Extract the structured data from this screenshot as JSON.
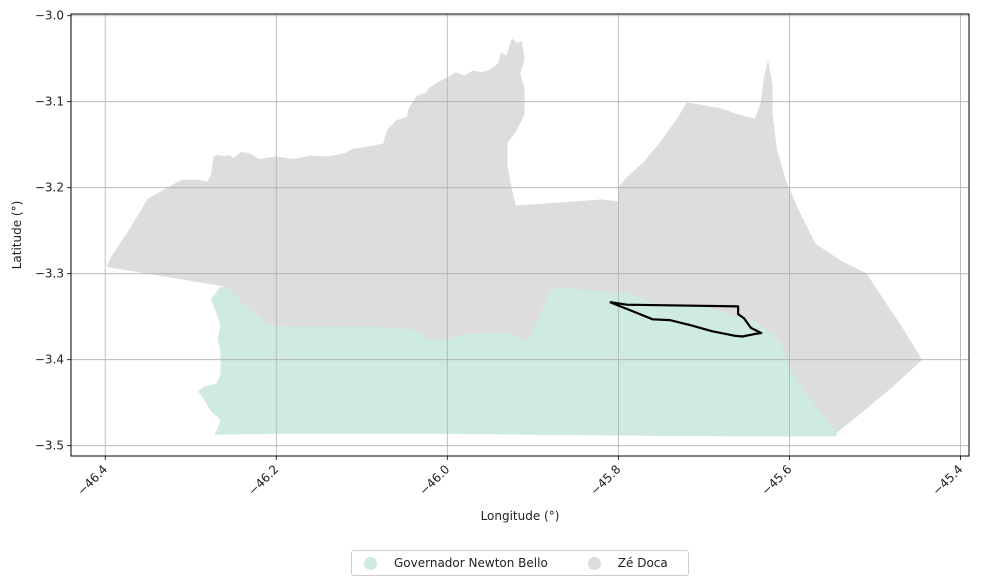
{
  "chart_data": {
    "type": "map",
    "xlabel": "Longitude (°)",
    "ylabel": "Latitude (°)",
    "xlim": [
      -46.44,
      -45.39
    ],
    "ylim": [
      -3.512,
      -2.998
    ],
    "xticks": [
      -46.4,
      -46.2,
      -46.0,
      -45.8,
      -45.6,
      -45.4
    ],
    "xtick_labels": [
      "−46.4",
      "−46.2",
      "−46.0",
      "−45.8",
      "−45.6",
      "−45.4"
    ],
    "yticks": [
      -3.0,
      -3.1,
      -3.2,
      -3.3,
      -3.4,
      -3.5
    ],
    "ytick_labels": [
      "−3.0",
      "−3.1",
      "−3.2",
      "−3.3",
      "−3.4",
      "−3.5"
    ],
    "grid": true,
    "legend_position": "bottom-center",
    "regions": [
      {
        "name": "Zé Doca",
        "color": "#dddddd",
        "coords": [
          [
            -46.398,
            -3.292
          ],
          [
            -46.392,
            -3.279
          ],
          [
            -46.37,
            -3.246
          ],
          [
            -46.35,
            -3.213
          ],
          [
            -46.32,
            -3.196
          ],
          [
            -46.31,
            -3.191
          ],
          [
            -46.29,
            -3.191
          ],
          [
            -46.28,
            -3.193
          ],
          [
            -46.276,
            -3.185
          ],
          [
            -46.273,
            -3.164
          ],
          [
            -46.27,
            -3.162
          ],
          [
            -46.26,
            -3.164
          ],
          [
            -46.255,
            -3.162
          ],
          [
            -46.25,
            -3.166
          ],
          [
            -46.242,
            -3.159
          ],
          [
            -46.232,
            -3.16
          ],
          [
            -46.22,
            -3.167
          ],
          [
            -46.2,
            -3.164
          ],
          [
            -46.18,
            -3.167
          ],
          [
            -46.16,
            -3.163
          ],
          [
            -46.14,
            -3.164
          ],
          [
            -46.12,
            -3.16
          ],
          [
            -46.11,
            -3.155
          ],
          [
            -46.09,
            -3.152
          ],
          [
            -46.075,
            -3.149
          ],
          [
            -46.07,
            -3.133
          ],
          [
            -46.06,
            -3.122
          ],
          [
            -46.047,
            -3.118
          ],
          [
            -46.045,
            -3.108
          ],
          [
            -46.04,
            -3.1
          ],
          [
            -46.035,
            -3.093
          ],
          [
            -46.025,
            -3.09
          ],
          [
            -46.02,
            -3.083
          ],
          [
            -46.01,
            -3.077
          ],
          [
            -46.0,
            -3.072
          ],
          [
            -45.99,
            -3.066
          ],
          [
            -45.98,
            -3.07
          ],
          [
            -45.97,
            -3.064
          ],
          [
            -45.96,
            -3.066
          ],
          [
            -45.95,
            -3.063
          ],
          [
            -45.94,
            -3.055
          ],
          [
            -45.937,
            -3.043
          ],
          [
            -45.931,
            -3.047
          ],
          [
            -45.924,
            -3.027
          ],
          [
            -45.918,
            -3.032
          ],
          [
            -45.913,
            -3.03
          ],
          [
            -45.91,
            -3.05
          ],
          [
            -45.915,
            -3.067
          ],
          [
            -45.91,
            -3.085
          ],
          [
            -45.91,
            -3.115
          ],
          [
            -45.92,
            -3.135
          ],
          [
            -45.93,
            -3.148
          ],
          [
            -45.93,
            -3.175
          ],
          [
            -45.925,
            -3.2
          ],
          [
            -45.92,
            -3.221
          ],
          [
            -45.86,
            -3.217
          ],
          [
            -45.82,
            -3.214
          ],
          [
            -45.8,
            -3.216
          ],
          [
            -45.8,
            -3.2
          ],
          [
            -45.79,
            -3.188
          ],
          [
            -45.77,
            -3.17
          ],
          [
            -45.75,
            -3.146
          ],
          [
            -45.73,
            -3.118
          ],
          [
            -45.72,
            -3.101
          ],
          [
            -45.68,
            -3.108
          ],
          [
            -45.66,
            -3.115
          ],
          [
            -45.64,
            -3.12
          ],
          [
            -45.633,
            -3.1
          ],
          [
            -45.63,
            -3.075
          ],
          [
            -45.625,
            -3.053
          ],
          [
            -45.62,
            -3.08
          ],
          [
            -45.62,
            -3.115
          ],
          [
            -45.615,
            -3.155
          ],
          [
            -45.605,
            -3.19
          ],
          [
            -45.59,
            -3.225
          ],
          [
            -45.57,
            -3.265
          ],
          [
            -45.54,
            -3.285
          ],
          [
            -45.51,
            -3.3
          ],
          [
            -45.5,
            -3.315
          ],
          [
            -45.47,
            -3.36
          ],
          [
            -45.445,
            -3.4
          ],
          [
            -45.48,
            -3.432
          ],
          [
            -45.52,
            -3.465
          ],
          [
            -45.545,
            -3.485
          ],
          [
            -45.56,
            -3.465
          ],
          [
            -45.58,
            -3.44
          ],
          [
            -45.6,
            -3.41
          ],
          [
            -45.61,
            -3.38
          ],
          [
            -45.64,
            -3.355
          ],
          [
            -45.7,
            -3.338
          ],
          [
            -45.76,
            -3.335
          ],
          [
            -45.78,
            -3.325
          ],
          [
            -45.79,
            -3.322
          ],
          [
            -45.83,
            -3.32
          ],
          [
            -45.87,
            -3.316
          ],
          [
            -45.88,
            -3.32
          ],
          [
            -45.895,
            -3.355
          ],
          [
            -45.905,
            -3.378
          ],
          [
            -45.93,
            -3.37
          ],
          [
            -45.95,
            -3.369
          ],
          [
            -45.97,
            -3.37
          ],
          [
            -45.99,
            -3.372
          ],
          [
            -46.0,
            -3.377
          ],
          [
            -46.02,
            -3.377
          ],
          [
            -46.03,
            -3.37
          ],
          [
            -46.04,
            -3.365
          ],
          [
            -46.06,
            -3.363
          ],
          [
            -46.09,
            -3.362
          ],
          [
            -46.13,
            -3.362
          ],
          [
            -46.19,
            -3.362
          ],
          [
            -46.21,
            -3.36
          ],
          [
            -46.23,
            -3.342
          ],
          [
            -46.25,
            -3.325
          ],
          [
            -46.258,
            -3.315
          ]
        ]
      },
      {
        "name": "Governador Newton Bello",
        "color": "#cfeadf",
        "coords": [
          [
            -46.258,
            -3.315
          ],
          [
            -46.266,
            -3.316
          ],
          [
            -46.276,
            -3.33
          ],
          [
            -46.27,
            -3.345
          ],
          [
            -46.265,
            -3.36
          ],
          [
            -46.268,
            -3.375
          ],
          [
            -46.265,
            -3.392
          ],
          [
            -46.265,
            -3.418
          ],
          [
            -46.27,
            -3.428
          ],
          [
            -46.285,
            -3.432
          ],
          [
            -46.291,
            -3.437
          ],
          [
            -46.285,
            -3.445
          ],
          [
            -46.276,
            -3.46
          ],
          [
            -46.265,
            -3.47
          ],
          [
            -46.267,
            -3.477
          ],
          [
            -46.272,
            -3.487
          ],
          [
            -46.2,
            -3.486
          ],
          [
            -46.0,
            -3.486
          ],
          [
            -45.9,
            -3.487
          ],
          [
            -45.78,
            -3.488
          ],
          [
            -45.65,
            -3.489
          ],
          [
            -45.545,
            -3.489
          ],
          [
            -45.545,
            -3.485
          ],
          [
            -45.56,
            -3.465
          ],
          [
            -45.58,
            -3.44
          ],
          [
            -45.6,
            -3.41
          ],
          [
            -45.61,
            -3.38
          ],
          [
            -45.64,
            -3.355
          ],
          [
            -45.7,
            -3.338
          ],
          [
            -45.76,
            -3.335
          ],
          [
            -45.78,
            -3.325
          ],
          [
            -45.79,
            -3.322
          ],
          [
            -45.83,
            -3.32
          ],
          [
            -45.87,
            -3.316
          ],
          [
            -45.88,
            -3.32
          ],
          [
            -45.895,
            -3.355
          ],
          [
            -45.905,
            -3.378
          ],
          [
            -45.93,
            -3.37
          ],
          [
            -45.95,
            -3.369
          ],
          [
            -45.97,
            -3.37
          ],
          [
            -45.99,
            -3.372
          ],
          [
            -46.0,
            -3.377
          ],
          [
            -46.02,
            -3.377
          ],
          [
            -46.03,
            -3.37
          ],
          [
            -46.04,
            -3.365
          ],
          [
            -46.06,
            -3.363
          ],
          [
            -46.09,
            -3.362
          ],
          [
            -46.13,
            -3.362
          ],
          [
            -46.19,
            -3.362
          ],
          [
            -46.21,
            -3.36
          ],
          [
            -46.23,
            -3.342
          ],
          [
            -46.25,
            -3.325
          ]
        ]
      }
    ],
    "outline": {
      "color": "#000000",
      "coords": [
        [
          -45.81,
          -3.333
        ],
        [
          -45.79,
          -3.336
        ],
        [
          -45.66,
          -3.338
        ],
        [
          -45.66,
          -3.347
        ],
        [
          -45.653,
          -3.352
        ],
        [
          -45.645,
          -3.363
        ],
        [
          -45.633,
          -3.369
        ],
        [
          -45.64,
          -3.37
        ],
        [
          -45.655,
          -3.373
        ],
        [
          -45.665,
          -3.372
        ],
        [
          -45.69,
          -3.367
        ],
        [
          -45.715,
          -3.36
        ],
        [
          -45.74,
          -3.354
        ],
        [
          -45.76,
          -3.353
        ],
        [
          -45.78,
          -3.345
        ],
        [
          -45.81,
          -3.333
        ]
      ]
    },
    "legend": [
      {
        "label": "Governador Newton Bello",
        "color": "#cfeadf"
      },
      {
        "label": "Zé Doca",
        "color": "#dddddd"
      }
    ]
  }
}
